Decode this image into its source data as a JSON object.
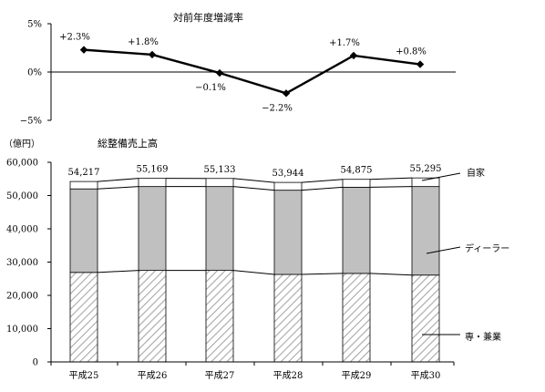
{
  "chart_data": [
    {
      "type": "line",
      "title": "対前年度増減率",
      "categories": [
        "平成25",
        "平成26",
        "平成27",
        "平成28",
        "平成29",
        "平成30"
      ],
      "values": [
        2.3,
        1.8,
        -0.1,
        -2.2,
        1.7,
        0.8
      ],
      "data_labels": [
        "+2.3%",
        "+1.8%",
        "−0.1%",
        "−2.2%",
        "+1.7%",
        "+0.8%"
      ],
      "ylim": [
        -5,
        5
      ],
      "yticks": [
        5,
        0,
        -5
      ],
      "ytick_labels": [
        "5%",
        "0%",
        "−5%"
      ],
      "marker": "diamond",
      "color": "#000000"
    },
    {
      "type": "bar",
      "stacked": true,
      "title": "総整備売上高",
      "ylabel": "（億円）",
      "categories": [
        "平成25",
        "平成26",
        "平成27",
        "平成28",
        "平成29",
        "平成30"
      ],
      "series": [
        {
          "name": "専・兼業",
          "values": [
            26900,
            27500,
            27500,
            26300,
            26600,
            26100
          ],
          "fill": "hatch"
        },
        {
          "name": "ディーラー",
          "values": [
            25100,
            25200,
            25200,
            25300,
            25900,
            26600
          ],
          "fill": "#c0c0c0"
        },
        {
          "name": "自家",
          "values": [
            2217,
            2469,
            2433,
            2344,
            2375,
            2595
          ],
          "fill": "#ffffff"
        }
      ],
      "totals": [
        54217,
        55169,
        55133,
        53944,
        54875,
        55295
      ],
      "total_labels": [
        "54,217",
        "55,169",
        "55,133",
        "53,944",
        "54,875",
        "55,295"
      ],
      "ylim": [
        0,
        60000
      ],
      "yticks": [
        0,
        10000,
        20000,
        30000,
        40000,
        50000,
        60000
      ],
      "ytick_labels": [
        "0",
        "10,000",
        "20,000",
        "30,000",
        "40,000",
        "50,000",
        "60,000"
      ],
      "grid": false,
      "legend": "callouts-right"
    }
  ]
}
